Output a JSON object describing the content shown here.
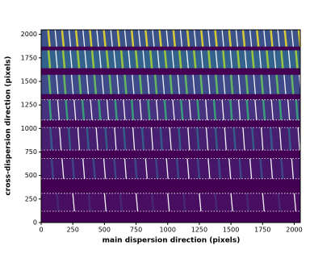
{
  "chart_data": {
    "type": "image",
    "xlabel": "main dispersion direction (pixels)",
    "ylabel": "cross-dispersion direction (pixels)",
    "xlim": [
      0,
      2048
    ],
    "ylim": [
      0,
      2048
    ],
    "xticks": [
      0,
      250,
      500,
      750,
      1000,
      1250,
      1500,
      1750,
      2000
    ],
    "yticks": [
      0,
      250,
      500,
      750,
      1000,
      1250,
      1500,
      1750,
      2000
    ],
    "background": "#440154",
    "orders": [
      {
        "y": [
          1870,
          2048
        ],
        "spacing": 110,
        "color": "#3b528b",
        "line_color": "#fde725",
        "dotted": false
      },
      {
        "y": [
          1640,
          1830
        ],
        "spacing": 115,
        "color": "#33628d",
        "line_color": "#b5de2b",
        "dotted": false
      },
      {
        "y": [
          1365,
          1570
        ],
        "spacing": 120,
        "color": "#3e4a89",
        "line_color": "#6ece58",
        "dotted": false
      },
      {
        "y": [
          1090,
          1305
        ],
        "spacing": 130,
        "color": "#46327e",
        "line_color": "#35b779",
        "dotted": true
      },
      {
        "y": [
          770,
          1010
        ],
        "spacing": 145,
        "color": "#481f70",
        "line_color": "#31688e",
        "dotted": true
      },
      {
        "y": [
          465,
          680
        ],
        "spacing": 165,
        "color": "#481668",
        "line_color": "#3b528b",
        "dotted": true
      },
      {
        "y": [
          120,
          310
        ],
        "spacing": 250,
        "color": "#470e61",
        "line_color": "#472d7b",
        "dotted": true
      }
    ]
  }
}
